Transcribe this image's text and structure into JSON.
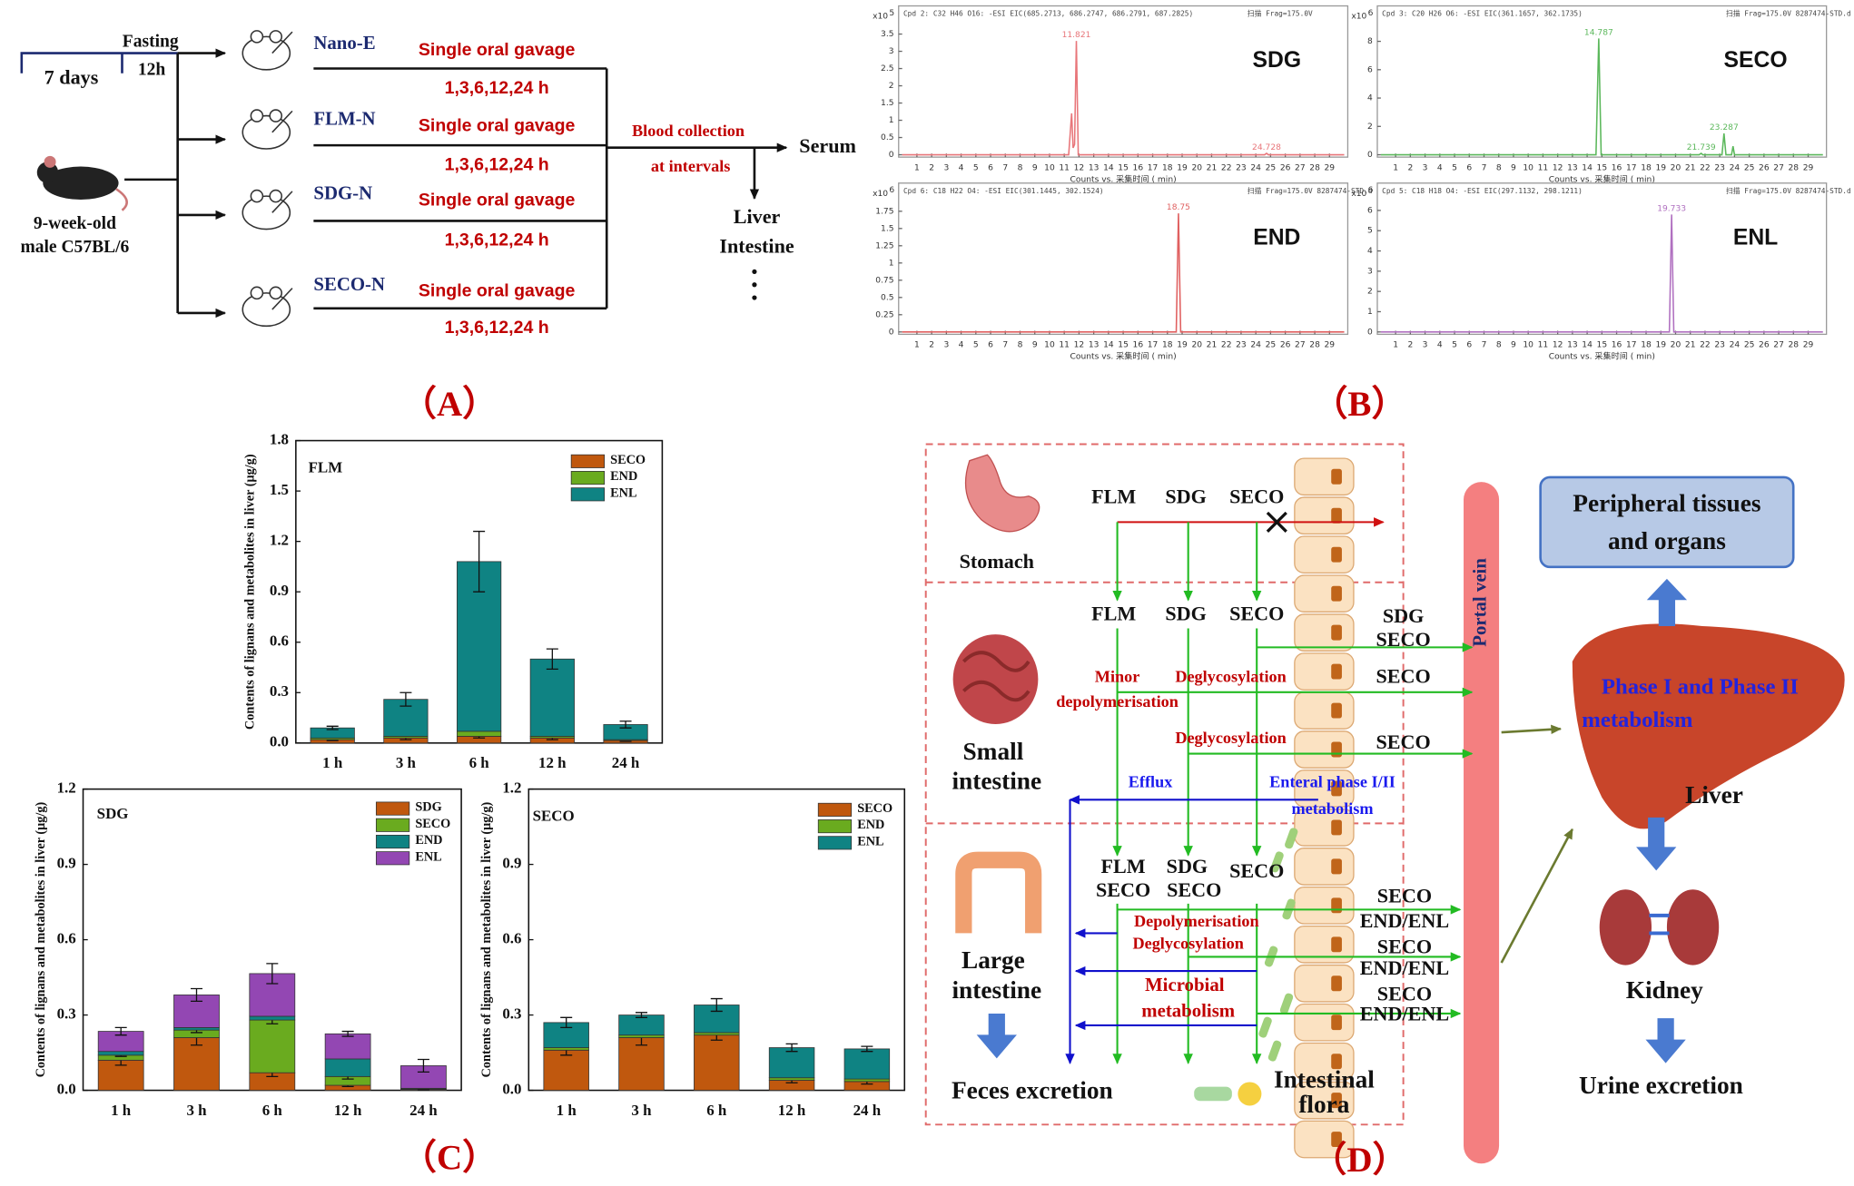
{
  "panel_a": {
    "label": "（A）",
    "pretreatment": "7 days",
    "fasting": "Fasting",
    "fasting_duration": "12h",
    "animal": [
      "9-week-old",
      "male C57BL/6"
    ],
    "groups": [
      {
        "name": "Nano-E",
        "treatment": "Single oral gavage",
        "times": "1,3,6,12,24 h"
      },
      {
        "name": "FLM-N",
        "treatment": "Single oral gavage",
        "times": "1,3,6,12,24 h"
      },
      {
        "name": "SDG-N",
        "treatment": "Single oral gavage",
        "times": "1,3,6,12,24 h"
      },
      {
        "name": "SECO-N",
        "treatment": "Single oral gavage",
        "times": "1,3,6,12,24 h"
      }
    ],
    "collection": [
      "Blood collection",
      "at intervals"
    ],
    "sample": "Serum",
    "tissues": [
      "Liver",
      "Intestine"
    ]
  },
  "panel_b": {
    "label": "（B）"
  },
  "panel_c": {
    "label": "（C）"
  },
  "chart_data": [
    {
      "type": "line",
      "title": "SDG",
      "header": "Cpd 2: C32 H46 O16: -ESI EIC(685.2713, 686.2747, 686.2791, 687.2825)",
      "scan": "扫描  Frag=175.0V",
      "y_unit": "x10",
      "y_exponent": 5,
      "xlabel": "Counts vs.    采集时间 ( min)",
      "color": "#e8767a",
      "xlim": [
        0,
        30
      ],
      "xticks": [
        1,
        2,
        3,
        4,
        5,
        6,
        7,
        8,
        9,
        10,
        11,
        12,
        13,
        14,
        15,
        16,
        17,
        18,
        19,
        20,
        21,
        22,
        23,
        24,
        25,
        26,
        27,
        28,
        29
      ],
      "ylim": [
        0,
        3.7
      ],
      "yticks": [
        0,
        0.5,
        1,
        1.5,
        2,
        2.5,
        3,
        3.5
      ],
      "x": [
        0,
        11.3,
        11.5,
        11.6,
        11.7,
        11.821,
        11.95,
        24.6,
        24.728,
        24.85,
        30
      ],
      "values": [
        0,
        0,
        1.2,
        0.2,
        0.3,
        3.3,
        0,
        0,
        0.04,
        0,
        0
      ],
      "peak_labels": [
        11.821,
        24.728
      ]
    },
    {
      "type": "line",
      "title": "SECO",
      "header": "Cpd 3: C20 H26 O6: -ESI EIC(361.1657, 362.1735)",
      "scan": "扫描  Frag=175.0V  8287474-STD.d",
      "y_unit": "x10",
      "y_exponent": 6,
      "xlabel": "Counts vs.    采集时间 ( min)",
      "color": "#5cb85c",
      "xlim": [
        0,
        30
      ],
      "xticks": [
        1,
        2,
        3,
        4,
        5,
        6,
        7,
        8,
        9,
        10,
        11,
        12,
        13,
        14,
        15,
        16,
        17,
        18,
        19,
        20,
        21,
        22,
        23,
        24,
        25,
        26,
        27,
        28,
        29
      ],
      "ylim": [
        0,
        9
      ],
      "yticks": [
        0,
        2,
        4,
        6,
        8
      ],
      "x": [
        0,
        14.6,
        14.787,
        14.95,
        21.6,
        21.739,
        21.85,
        23.15,
        23.287,
        23.42,
        23.8,
        23.9,
        24.0,
        30
      ],
      "values": [
        0,
        0,
        8.2,
        0,
        0,
        0.1,
        0,
        0,
        1.5,
        0,
        0,
        0.6,
        0,
        0
      ],
      "peak_labels": [
        14.787,
        21.739,
        23.287
      ]
    },
    {
      "type": "line",
      "title": "END",
      "header": "Cpd 6: C18 H22 O4: -ESI EIC(301.1445, 302.1524)",
      "scan": "扫描  Frag=175.0V  8287474-STD.d",
      "y_unit": "x10",
      "y_exponent": 6,
      "xlabel": "Counts vs.    采集时间 ( min)",
      "color": "#e06060",
      "xlim": [
        0,
        30
      ],
      "xticks": [
        1,
        2,
        3,
        4,
        5,
        6,
        7,
        8,
        9,
        10,
        11,
        12,
        13,
        14,
        15,
        16,
        17,
        18,
        19,
        20,
        21,
        22,
        23,
        24,
        25,
        26,
        27,
        28,
        29
      ],
      "ylim": [
        0,
        1.85
      ],
      "yticks": [
        0,
        0.25,
        0.5,
        0.75,
        1,
        1.25,
        1.5,
        1.75
      ],
      "x": [
        0,
        18.6,
        18.75,
        18.9,
        30
      ],
      "values": [
        0,
        0,
        1.72,
        0,
        0
      ],
      "peak_labels": [
        18.75
      ]
    },
    {
      "type": "line",
      "title": "ENL",
      "header": "Cpd 5: C18 H18 O4: -ESI EIC(297.1132, 298.1211)",
      "scan": "扫描  Frag=175.0V  8287474-STD.d",
      "y_unit": "x10",
      "y_exponent": 6,
      "xlabel": "Counts vs.    采集时间 ( min)",
      "color": "#b070c0",
      "xlim": [
        0,
        30
      ],
      "xticks": [
        1,
        2,
        3,
        4,
        5,
        6,
        7,
        8,
        9,
        10,
        11,
        12,
        13,
        14,
        15,
        16,
        17,
        18,
        19,
        20,
        21,
        22,
        23,
        24,
        25,
        26,
        27,
        28,
        29
      ],
      "ylim": [
        0,
        6.3
      ],
      "yticks": [
        0,
        1,
        2,
        3,
        4,
        5,
        6
      ],
      "x": [
        0,
        19.58,
        19.733,
        19.88,
        30
      ],
      "values": [
        0,
        0,
        5.8,
        0,
        0
      ],
      "peak_labels": [
        19.733
      ]
    },
    {
      "type": "bar",
      "title": "FLM",
      "ylabel": "Contents of lignans and metabolites in liver (μg/g)",
      "categories": [
        "1 h",
        "3 h",
        "6 h",
        "12 h",
        "24 h"
      ],
      "ylim": [
        0,
        1.8
      ],
      "yticks": [
        {
          "value": 0,
          "label": "0.0"
        },
        0.3,
        0.6,
        0.9,
        1.2,
        1.5,
        1.8
      ],
      "series": [
        {
          "name": "SECO",
          "color": "#c0580e",
          "values": [
            0.02,
            0.03,
            0.04,
            0.03,
            0.015
          ],
          "errors": [
            0.005,
            0.01,
            0.01,
            0.01,
            0.005
          ]
        },
        {
          "name": "END",
          "color": "#6aab1f",
          "values": [
            0.01,
            0.01,
            0.03,
            0.01,
            0.005
          ]
        },
        {
          "name": "ENL",
          "color": "#0f8383",
          "values": [
            0.06,
            0.22,
            1.01,
            0.46,
            0.09
          ],
          "errors": [
            0.01,
            0.04,
            0.18,
            0.06,
            0.02
          ]
        }
      ]
    },
    {
      "type": "bar",
      "title": "SDG",
      "ylabel": "Contents of lignans and metabolites in liver (μg/g)",
      "categories": [
        "1 h",
        "3 h",
        "6 h",
        "12 h",
        "24 h"
      ],
      "ylim": [
        0,
        1.2
      ],
      "yticks": [
        {
          "value": 0,
          "label": "0.0"
        },
        0.3,
        0.6,
        0.9,
        1.2
      ],
      "series": [
        {
          "name": "SDG",
          "color": "#c0580e",
          "values": [
            0.12,
            0.21,
            0.07,
            0.02,
            0.003
          ],
          "errors": [
            0.02,
            0.03,
            0.015,
            0.005,
            0.002
          ]
        },
        {
          "name": "SECO",
          "color": "#6aab1f",
          "values": [
            0.02,
            0.03,
            0.21,
            0.035,
            0.002
          ],
          "errors": [
            0.005,
            0.01,
            0.015,
            0.01,
            0.001
          ]
        },
        {
          "name": "END",
          "color": "#0f8383",
          "values": [
            0.015,
            0.01,
            0.015,
            0.07,
            0.003
          ]
        },
        {
          "name": "ENL",
          "color": "#9347b3",
          "values": [
            0.08,
            0.13,
            0.17,
            0.1,
            0.09
          ],
          "errors": [
            0.015,
            0.025,
            0.04,
            0.01,
            0.025
          ]
        }
      ]
    },
    {
      "type": "bar",
      "title": "SECO",
      "ylabel": "Contents of lignans and metabolites in liver (μg/g)",
      "categories": [
        "1 h",
        "3 h",
        "6 h",
        "12 h",
        "24 h"
      ],
      "ylim": [
        0,
        1.2
      ],
      "yticks": [
        {
          "value": 0,
          "label": "0.0"
        },
        0.3,
        0.6,
        0.9,
        1.2
      ],
      "series": [
        {
          "name": "SECO",
          "color": "#c0580e",
          "values": [
            0.16,
            0.21,
            0.22,
            0.04,
            0.035
          ],
          "errors": [
            0.02,
            0.03,
            0.02,
            0.01,
            0.01
          ]
        },
        {
          "name": "END",
          "color": "#6aab1f",
          "values": [
            0.01,
            0.01,
            0.01,
            0.01,
            0.01
          ]
        },
        {
          "name": "ENL",
          "color": "#0f8383",
          "values": [
            0.1,
            0.08,
            0.11,
            0.12,
            0.12
          ],
          "errors": [
            0.02,
            0.01,
            0.025,
            0.015,
            0.01
          ]
        }
      ]
    }
  ],
  "panel_d": {
    "label": "（D）",
    "stomach": {
      "name": "Stomach",
      "compounds": [
        "FLM",
        "SDG",
        "SECO"
      ]
    },
    "small_intestine": {
      "name": [
        "Small",
        "intestine"
      ],
      "compounds": [
        "FLM",
        "SDG",
        "SECO"
      ],
      "processes": [
        "Minor",
        "depolymerisation",
        "Deglycosylation",
        "Deglycosylation"
      ],
      "absorbed": [
        "SDG",
        "SECO",
        "SECO",
        "SECO"
      ],
      "efflux": "Efflux",
      "enteral": [
        "Enteral phase I/II",
        "metabolism"
      ]
    },
    "large_intestine": {
      "name": [
        "Large",
        "intestine"
      ],
      "compounds": [
        "FLM",
        "SECO",
        "SDG",
        "SECO",
        "SECO"
      ],
      "processes": [
        "Depolymerisation",
        "Deglycosylation",
        "Microbial",
        "metabolism"
      ],
      "absorbed": [
        "SECO",
        "END/ENL",
        "SECO",
        "END/ENL",
        "SECO",
        "END/ENL"
      ]
    },
    "feces": "Feces excretion",
    "flora": [
      "Intestinal",
      "flora"
    ],
    "portal_vein": "Portal vein",
    "peripheral": [
      "Peripheral tissues",
      "and organs"
    ],
    "liver_process": [
      "Phase I and Phase II",
      "metabolism"
    ],
    "liver": "Liver",
    "kidney": "Kidney",
    "urine": "Urine excretion"
  }
}
